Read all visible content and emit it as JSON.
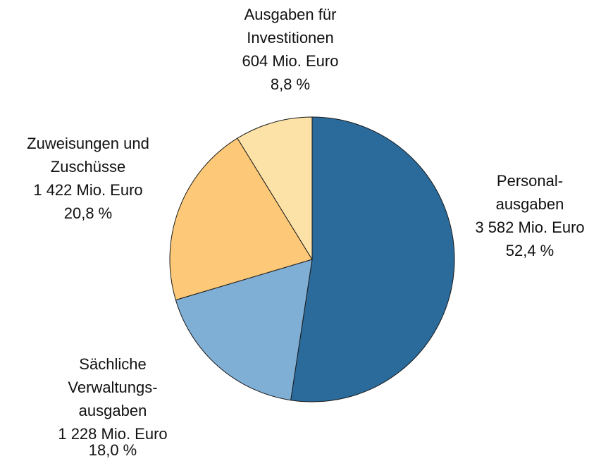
{
  "chart_data": {
    "type": "pie",
    "categories": [
      [
        "Personal-",
        "ausgaben"
      ],
      [
        "Sächliche",
        "Verwaltungs-",
        "ausgaben"
      ],
      [
        "Zuweisungen und",
        "Zuschüsse"
      ],
      [
        "Ausgaben für",
        "Investitionen"
      ]
    ],
    "values": [
      52.4,
      18.0,
      20.8,
      8.8
    ],
    "value_labels": [
      "52,4 %",
      "18,0 %",
      "20,8 %",
      "8,8 %"
    ],
    "amounts": [
      3582,
      1228,
      1422,
      604
    ],
    "amount_labels": [
      "3 582 Mio. Euro",
      "1 228 Mio. Euro",
      "1 422 Mio. Euro",
      "604 Mio. Euro"
    ],
    "colors": [
      "#2a6b9c",
      "#80afd6",
      "#fdc978",
      "#fde2a8"
    ]
  }
}
